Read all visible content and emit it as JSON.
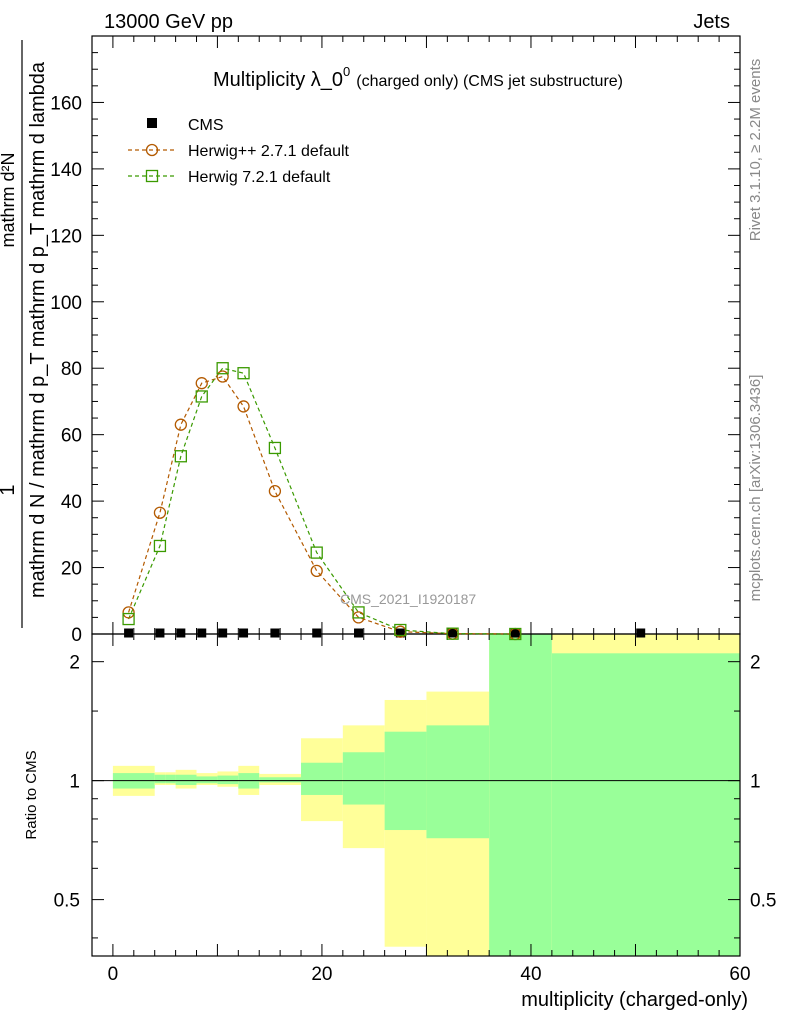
{
  "header": {
    "left": "13000 GeV pp",
    "right": "Jets"
  },
  "side_labels": {
    "rivet": "Rivet 3.1.10, ≥ 2.2M events",
    "mcplots": "mcplots.cern.ch [arXiv:1306.3436]"
  },
  "chart_data": [
    {
      "type": "line",
      "title_main": "Multiplicity λ_0",
      "title_sup": "0",
      "title_sub": "(charged only) (CMS jet substructure)",
      "ylabel_top": "1",
      "ylabel_mid": "mathrm d N / mathrm d p_T mathrm d p_T mathrm d lambda",
      "ylabel_mid_num": "mathrm d²N",
      "watermark": "CMS_2021_I1920187",
      "xlim": [
        -2,
        60
      ],
      "ylim": [
        0,
        180
      ],
      "yticks": [
        0,
        20,
        40,
        60,
        80,
        100,
        120,
        140,
        160
      ],
      "ytick_labels": [
        "0",
        "20",
        "40",
        "60",
        "80",
        "100",
        "120",
        "140",
        "160"
      ],
      "legend": [
        {
          "name": "CMS",
          "color": "#000000",
          "marker": "square-filled"
        },
        {
          "name": "Herwig++ 2.7.1 default",
          "color": "#b35a00",
          "marker": "circle-open"
        },
        {
          "name": "Herwig 7.2.1 default",
          "color": "#3a9a00",
          "marker": "square-open"
        }
      ],
      "series": [
        {
          "name": "CMS",
          "x": [
            1.5,
            4.5,
            6.5,
            8.5,
            10.5,
            12.5,
            15.5,
            19.5,
            23.5,
            27.5,
            32.5,
            38.5,
            50.5
          ],
          "values": [
            0.3,
            0.3,
            0.3,
            0.3,
            0.3,
            0.3,
            0.3,
            0.3,
            0.3,
            0.3,
            0.3,
            0.3,
            0.3
          ]
        },
        {
          "name": "Herwig++ 2.7.1 default",
          "x": [
            1.5,
            4.5,
            6.5,
            8.5,
            10.5,
            12.5,
            15.5,
            19.5,
            23.5,
            27.5,
            32.5,
            38.5
          ],
          "values": [
            6.5,
            36.5,
            63,
            75.5,
            77.5,
            68.5,
            43,
            19,
            5,
            0.7,
            0.1,
            0.0
          ]
        },
        {
          "name": "Herwig 7.2.1 default",
          "x": [
            1.5,
            4.5,
            6.5,
            8.5,
            10.5,
            12.5,
            15.5,
            19.5,
            23.5,
            27.5,
            32.5,
            38.5
          ],
          "values": [
            4.5,
            26.5,
            53.5,
            71.5,
            80,
            78.5,
            56,
            24.5,
            6.5,
            1.2,
            0.1,
            0.0
          ]
        }
      ]
    },
    {
      "type": "area",
      "ylabel": "Ratio to CMS",
      "xlabel": "multiplicity (charged-only)",
      "xlim": [
        -2,
        60
      ],
      "ylim": [
        0.36,
        2.35
      ],
      "scale": "log",
      "xticks": [
        0,
        20,
        40,
        60
      ],
      "xtick_labels": [
        "0",
        "20",
        "40",
        "60"
      ],
      "yticks": [
        0.5,
        1,
        2
      ],
      "ytick_labels": [
        "0.5",
        "1",
        "2"
      ],
      "reference_line": 1,
      "bins": [
        {
          "x0": 0,
          "x1": 4,
          "total_lo": 0.915,
          "total_hi": 1.09,
          "stat_lo": 0.955,
          "stat_hi": 1.045
        },
        {
          "x0": 4,
          "x1": 5,
          "total_lo": 0.975,
          "total_hi": 1.05,
          "stat_lo": 0.985,
          "stat_hi": 1.035
        },
        {
          "x0": 5,
          "x1": 6,
          "total_lo": 0.975,
          "total_hi": 1.05,
          "stat_lo": 0.985,
          "stat_hi": 1.035
        },
        {
          "x0": 6,
          "x1": 8,
          "total_lo": 0.955,
          "total_hi": 1.065,
          "stat_lo": 0.975,
          "stat_hi": 1.035
        },
        {
          "x0": 8,
          "x1": 10,
          "total_lo": 0.975,
          "total_hi": 1.045,
          "stat_lo": 0.985,
          "stat_hi": 1.025
        },
        {
          "x0": 10,
          "x1": 12,
          "total_lo": 0.965,
          "total_hi": 1.055,
          "stat_lo": 0.98,
          "stat_hi": 1.03
        },
        {
          "x0": 12,
          "x1": 14,
          "total_lo": 0.92,
          "total_hi": 1.09,
          "stat_lo": 0.955,
          "stat_hi": 1.045
        },
        {
          "x0": 14,
          "x1": 18,
          "total_lo": 0.975,
          "total_hi": 1.04,
          "stat_lo": 0.99,
          "stat_hi": 1.02
        },
        {
          "x0": 18,
          "x1": 22,
          "total_lo": 0.79,
          "total_hi": 1.28,
          "stat_lo": 0.92,
          "stat_hi": 1.11
        },
        {
          "x0": 22,
          "x1": 26,
          "total_lo": 0.675,
          "total_hi": 1.38,
          "stat_lo": 0.87,
          "stat_hi": 1.18
        },
        {
          "x0": 26,
          "x1": 30,
          "total_lo": 0.38,
          "total_hi": 1.6,
          "stat_lo": 0.75,
          "stat_hi": 1.33
        },
        {
          "x0": 30,
          "x1": 36,
          "total_lo": 0.36,
          "total_hi": 1.68,
          "stat_lo": 0.715,
          "stat_hi": 1.38
        },
        {
          "x0": 36,
          "x1": 42,
          "total_lo": 0.36,
          "total_hi": 2.35,
          "stat_lo": 0.36,
          "stat_hi": 2.35
        },
        {
          "x0": 42,
          "x1": 60,
          "total_lo": 0.36,
          "total_hi": 2.35,
          "stat_lo": 0.36,
          "stat_hi": 2.1
        }
      ],
      "colors": {
        "total": "#ffff99",
        "stat": "#99ff99"
      }
    }
  ]
}
